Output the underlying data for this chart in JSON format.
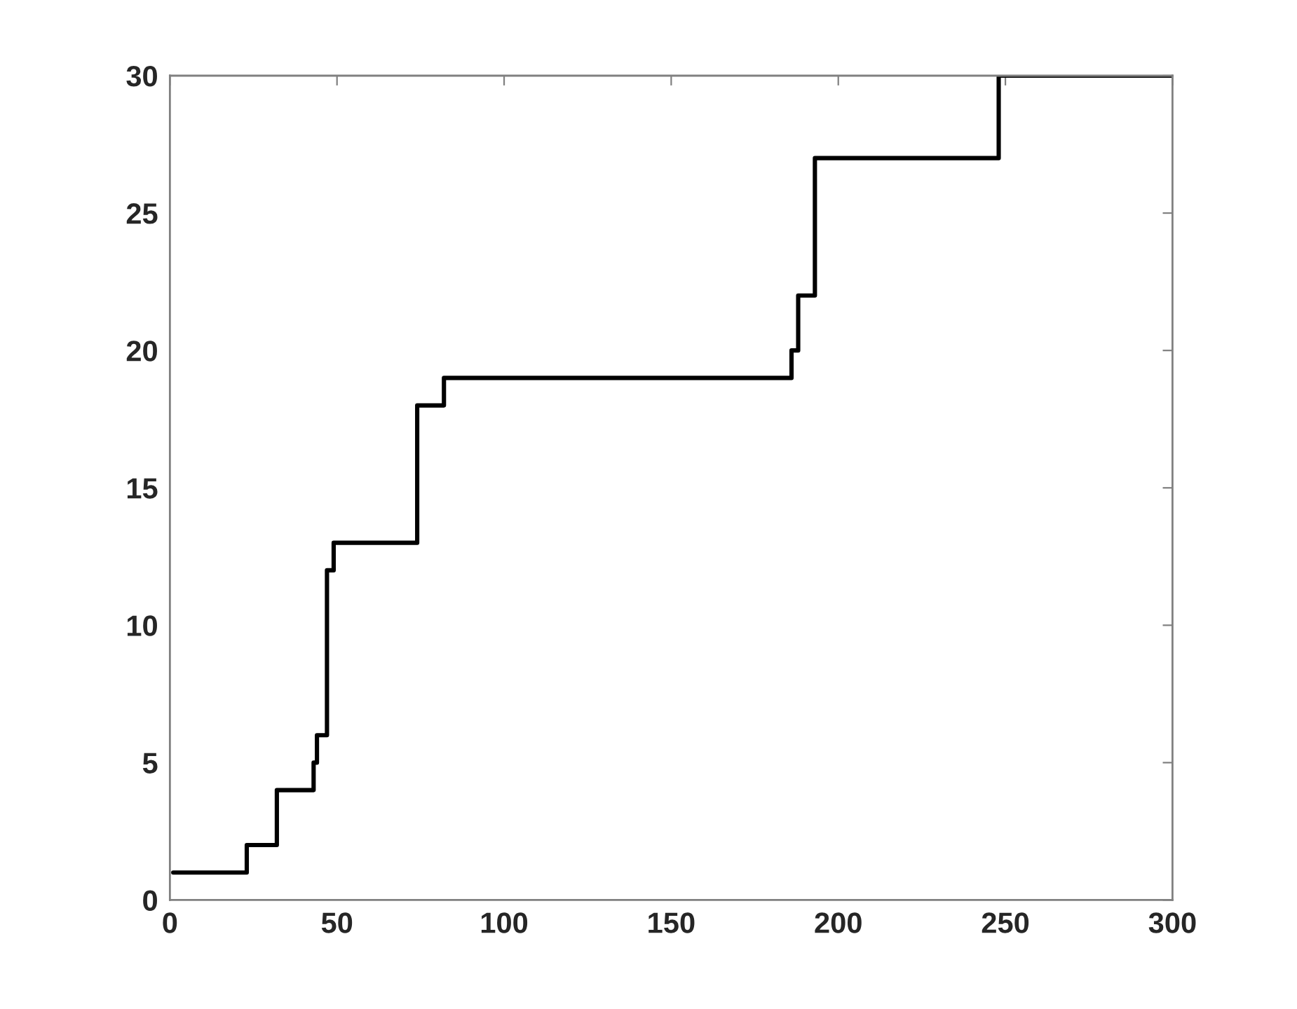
{
  "chart_data": {
    "type": "step",
    "series": [
      {
        "color": "#000000",
        "x": [
          1,
          23,
          32,
          43,
          44,
          47,
          49,
          74,
          82,
          186,
          188,
          193,
          248,
          300
        ],
        "values": [
          1,
          2,
          4,
          5,
          6,
          12,
          13,
          18,
          19,
          20,
          22,
          27,
          30,
          30
        ]
      }
    ],
    "xlim": [
      0,
      300
    ],
    "xticks": [
      0,
      50,
      100,
      150,
      200,
      250,
      300
    ],
    "ylim": [
      0,
      30
    ],
    "yticks": [
      0,
      5,
      10,
      15,
      20,
      25,
      30
    ],
    "grid": false,
    "legend": false
  }
}
